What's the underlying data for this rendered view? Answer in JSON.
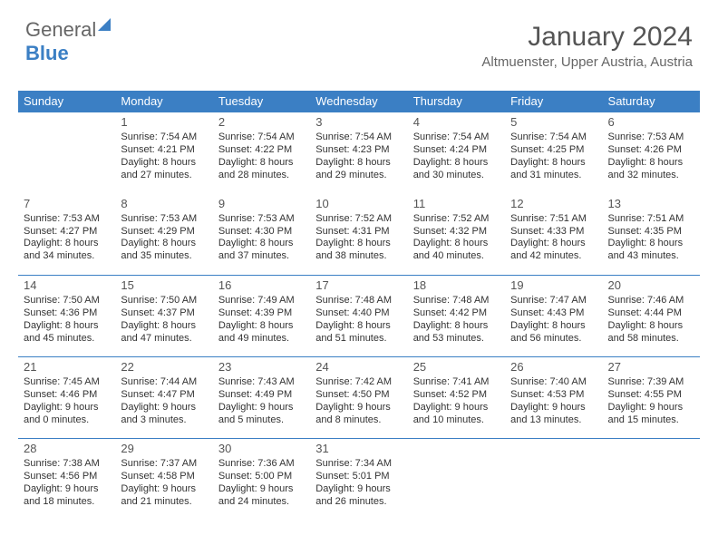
{
  "logo": {
    "text1": "General",
    "text2": "Blue"
  },
  "header": {
    "month_title": "January 2024",
    "location": "Altmuenster, Upper Austria, Austria"
  },
  "colors": {
    "header_bg": "#3b7fc4",
    "header_text": "#ffffff",
    "rule": "#3b7fc4",
    "text": "#333333",
    "muted": "#666666"
  },
  "weekdays": [
    "Sunday",
    "Monday",
    "Tuesday",
    "Wednesday",
    "Thursday",
    "Friday",
    "Saturday"
  ],
  "weeks": [
    [
      {
        "day": "",
        "lines": []
      },
      {
        "day": "1",
        "lines": [
          "Sunrise: 7:54 AM",
          "Sunset: 4:21 PM",
          "Daylight: 8 hours",
          "and 27 minutes."
        ]
      },
      {
        "day": "2",
        "lines": [
          "Sunrise: 7:54 AM",
          "Sunset: 4:22 PM",
          "Daylight: 8 hours",
          "and 28 minutes."
        ]
      },
      {
        "day": "3",
        "lines": [
          "Sunrise: 7:54 AM",
          "Sunset: 4:23 PM",
          "Daylight: 8 hours",
          "and 29 minutes."
        ]
      },
      {
        "day": "4",
        "lines": [
          "Sunrise: 7:54 AM",
          "Sunset: 4:24 PM",
          "Daylight: 8 hours",
          "and 30 minutes."
        ]
      },
      {
        "day": "5",
        "lines": [
          "Sunrise: 7:54 AM",
          "Sunset: 4:25 PM",
          "Daylight: 8 hours",
          "and 31 minutes."
        ]
      },
      {
        "day": "6",
        "lines": [
          "Sunrise: 7:53 AM",
          "Sunset: 4:26 PM",
          "Daylight: 8 hours",
          "and 32 minutes."
        ]
      }
    ],
    [
      {
        "day": "7",
        "lines": [
          "Sunrise: 7:53 AM",
          "Sunset: 4:27 PM",
          "Daylight: 8 hours",
          "and 34 minutes."
        ]
      },
      {
        "day": "8",
        "lines": [
          "Sunrise: 7:53 AM",
          "Sunset: 4:29 PM",
          "Daylight: 8 hours",
          "and 35 minutes."
        ]
      },
      {
        "day": "9",
        "lines": [
          "Sunrise: 7:53 AM",
          "Sunset: 4:30 PM",
          "Daylight: 8 hours",
          "and 37 minutes."
        ]
      },
      {
        "day": "10",
        "lines": [
          "Sunrise: 7:52 AM",
          "Sunset: 4:31 PM",
          "Daylight: 8 hours",
          "and 38 minutes."
        ]
      },
      {
        "day": "11",
        "lines": [
          "Sunrise: 7:52 AM",
          "Sunset: 4:32 PM",
          "Daylight: 8 hours",
          "and 40 minutes."
        ]
      },
      {
        "day": "12",
        "lines": [
          "Sunrise: 7:51 AM",
          "Sunset: 4:33 PM",
          "Daylight: 8 hours",
          "and 42 minutes."
        ]
      },
      {
        "day": "13",
        "lines": [
          "Sunrise: 7:51 AM",
          "Sunset: 4:35 PM",
          "Daylight: 8 hours",
          "and 43 minutes."
        ]
      }
    ],
    [
      {
        "day": "14",
        "lines": [
          "Sunrise: 7:50 AM",
          "Sunset: 4:36 PM",
          "Daylight: 8 hours",
          "and 45 minutes."
        ]
      },
      {
        "day": "15",
        "lines": [
          "Sunrise: 7:50 AM",
          "Sunset: 4:37 PM",
          "Daylight: 8 hours",
          "and 47 minutes."
        ]
      },
      {
        "day": "16",
        "lines": [
          "Sunrise: 7:49 AM",
          "Sunset: 4:39 PM",
          "Daylight: 8 hours",
          "and 49 minutes."
        ]
      },
      {
        "day": "17",
        "lines": [
          "Sunrise: 7:48 AM",
          "Sunset: 4:40 PM",
          "Daylight: 8 hours",
          "and 51 minutes."
        ]
      },
      {
        "day": "18",
        "lines": [
          "Sunrise: 7:48 AM",
          "Sunset: 4:42 PM",
          "Daylight: 8 hours",
          "and 53 minutes."
        ]
      },
      {
        "day": "19",
        "lines": [
          "Sunrise: 7:47 AM",
          "Sunset: 4:43 PM",
          "Daylight: 8 hours",
          "and 56 minutes."
        ]
      },
      {
        "day": "20",
        "lines": [
          "Sunrise: 7:46 AM",
          "Sunset: 4:44 PM",
          "Daylight: 8 hours",
          "and 58 minutes."
        ]
      }
    ],
    [
      {
        "day": "21",
        "lines": [
          "Sunrise: 7:45 AM",
          "Sunset: 4:46 PM",
          "Daylight: 9 hours",
          "and 0 minutes."
        ]
      },
      {
        "day": "22",
        "lines": [
          "Sunrise: 7:44 AM",
          "Sunset: 4:47 PM",
          "Daylight: 9 hours",
          "and 3 minutes."
        ]
      },
      {
        "day": "23",
        "lines": [
          "Sunrise: 7:43 AM",
          "Sunset: 4:49 PM",
          "Daylight: 9 hours",
          "and 5 minutes."
        ]
      },
      {
        "day": "24",
        "lines": [
          "Sunrise: 7:42 AM",
          "Sunset: 4:50 PM",
          "Daylight: 9 hours",
          "and 8 minutes."
        ]
      },
      {
        "day": "25",
        "lines": [
          "Sunrise: 7:41 AM",
          "Sunset: 4:52 PM",
          "Daylight: 9 hours",
          "and 10 minutes."
        ]
      },
      {
        "day": "26",
        "lines": [
          "Sunrise: 7:40 AM",
          "Sunset: 4:53 PM",
          "Daylight: 9 hours",
          "and 13 minutes."
        ]
      },
      {
        "day": "27",
        "lines": [
          "Sunrise: 7:39 AM",
          "Sunset: 4:55 PM",
          "Daylight: 9 hours",
          "and 15 minutes."
        ]
      }
    ],
    [
      {
        "day": "28",
        "lines": [
          "Sunrise: 7:38 AM",
          "Sunset: 4:56 PM",
          "Daylight: 9 hours",
          "and 18 minutes."
        ]
      },
      {
        "day": "29",
        "lines": [
          "Sunrise: 7:37 AM",
          "Sunset: 4:58 PM",
          "Daylight: 9 hours",
          "and 21 minutes."
        ]
      },
      {
        "day": "30",
        "lines": [
          "Sunrise: 7:36 AM",
          "Sunset: 5:00 PM",
          "Daylight: 9 hours",
          "and 24 minutes."
        ]
      },
      {
        "day": "31",
        "lines": [
          "Sunrise: 7:34 AM",
          "Sunset: 5:01 PM",
          "Daylight: 9 hours",
          "and 26 minutes."
        ]
      },
      {
        "day": "",
        "lines": []
      },
      {
        "day": "",
        "lines": []
      },
      {
        "day": "",
        "lines": []
      }
    ]
  ]
}
